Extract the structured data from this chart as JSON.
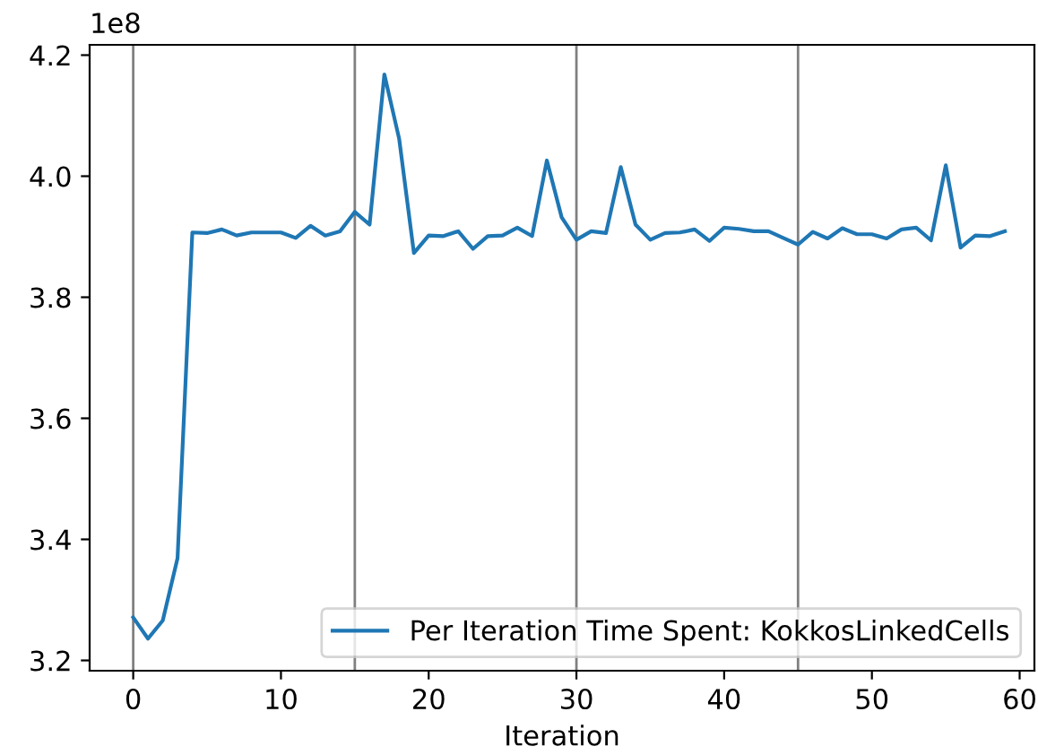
{
  "chart_data": {
    "type": "line",
    "xlabel": "Iteration",
    "x": [
      0,
      1,
      2,
      3,
      4,
      5,
      6,
      7,
      8,
      9,
      10,
      11,
      12,
      13,
      14,
      15,
      16,
      17,
      18,
      19,
      20,
      21,
      22,
      23,
      24,
      25,
      26,
      27,
      28,
      29,
      30,
      31,
      32,
      33,
      34,
      35,
      36,
      37,
      38,
      39,
      40,
      41,
      42,
      43,
      44,
      45,
      46,
      47,
      48,
      49,
      50,
      51,
      52,
      53,
      54,
      55,
      56,
      57,
      58,
      59
    ],
    "series": [
      {
        "name": "Per Iteration Time Spent: KokkosLinkedCells",
        "color": "#1f77b4",
        "values": [
          3.271,
          3.236,
          3.266,
          3.369,
          3.907,
          3.906,
          3.912,
          3.902,
          3.907,
          3.907,
          3.907,
          3.898,
          3.918,
          3.902,
          3.909,
          3.941,
          3.92,
          4.168,
          4.062,
          3.873,
          3.902,
          3.901,
          3.909,
          3.88,
          3.901,
          3.902,
          3.915,
          3.901,
          4.026,
          3.932,
          3.895,
          3.909,
          3.906,
          4.015,
          3.92,
          3.895,
          3.906,
          3.907,
          3.912,
          3.893,
          3.915,
          3.913,
          3.909,
          3.909,
          3.898,
          3.887,
          3.908,
          3.897,
          3.914,
          3.904,
          3.904,
          3.897,
          3.912,
          3.915,
          3.894,
          4.018,
          3.882,
          3.902,
          3.901,
          3.909
        ]
      }
    ],
    "xlim": [
      -2.95,
      61.0
    ],
    "ylim": [
      3.183,
      4.217
    ],
    "xticks": [
      0,
      10,
      20,
      30,
      40,
      50,
      60
    ],
    "yticks": [
      {
        "value": 3.2,
        "label": "3.2"
      },
      {
        "value": 3.4,
        "label": "3.4"
      },
      {
        "value": 3.6,
        "label": "3.6"
      },
      {
        "value": 3.8,
        "label": "3.8"
      },
      {
        "value": 4.0,
        "label": "4.0"
      },
      {
        "value": 4.2,
        "label": "4.2"
      }
    ],
    "ref_lines": [
      {
        "axis": "x",
        "value": 0,
        "color": "#808080"
      },
      {
        "axis": "x",
        "value": 15,
        "color": "#808080"
      },
      {
        "axis": "x",
        "value": 30,
        "color": "#808080"
      },
      {
        "axis": "x",
        "value": 45,
        "color": "#808080"
      }
    ],
    "annotations": [
      "1e8"
    ],
    "legend": "lower right",
    "grid": false,
    "marker": "none",
    "line_style": "solid"
  }
}
